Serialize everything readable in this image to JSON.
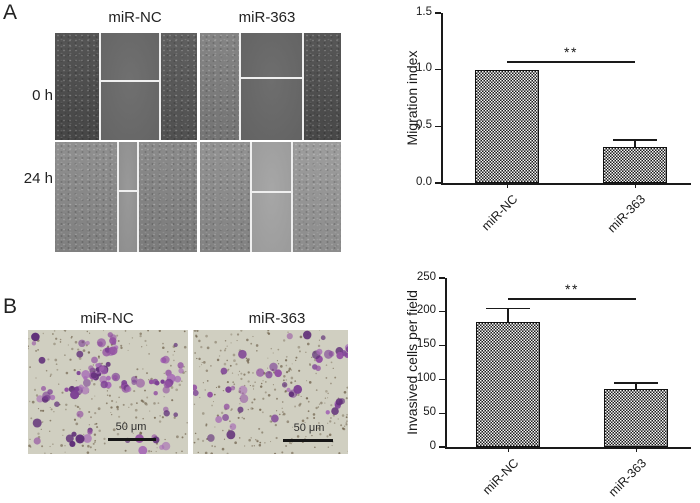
{
  "figure": {
    "panel_a": {
      "label": "A",
      "column_labels": [
        "miR-NC",
        "miR-363"
      ],
      "row_labels": [
        "0 h",
        "24 h"
      ]
    },
    "panel_b": {
      "label": "B",
      "column_labels": [
        "miR-NC",
        "miR-363"
      ],
      "scale_bar_label": "50 μm"
    }
  },
  "chart_data": [
    {
      "type": "bar",
      "ylabel": "Migration index",
      "categories": [
        "miR-NC",
        "miR-363"
      ],
      "values": [
        1.0,
        0.32
      ],
      "errors": [
        0,
        0.06
      ],
      "ylim": [
        0,
        1.5
      ],
      "yticks": [
        0,
        0.5,
        1.0,
        1.5
      ],
      "ytick_labels": [
        "0.0",
        "0.5",
        "1.0",
        "1.5"
      ],
      "significance": "**",
      "grid": false,
      "legend": null,
      "bar_fill": "checkerboard-hatch"
    },
    {
      "type": "bar",
      "ylabel": "Invasived cells per field",
      "categories": [
        "miR-NC",
        "miR-363"
      ],
      "values": [
        185,
        86
      ],
      "errors": [
        20,
        9
      ],
      "ylim": [
        0,
        250
      ],
      "yticks": [
        0,
        50,
        100,
        150,
        200,
        250
      ],
      "ytick_labels": [
        "0",
        "50",
        "100",
        "150",
        "200",
        "250"
      ],
      "significance": "**",
      "grid": false,
      "legend": null,
      "bar_fill": "checkerboard-hatch"
    }
  ],
  "colors": {
    "axis_black": "#1a1a1a",
    "pattern_light": "#f6f6f6",
    "membrane_beige": "#d0cfc1",
    "stain_purples": [
      "#9351a2",
      "#7c3f94",
      "#a66bb5",
      "#5f2e78"
    ],
    "pore_brown": "#6d5f49"
  }
}
